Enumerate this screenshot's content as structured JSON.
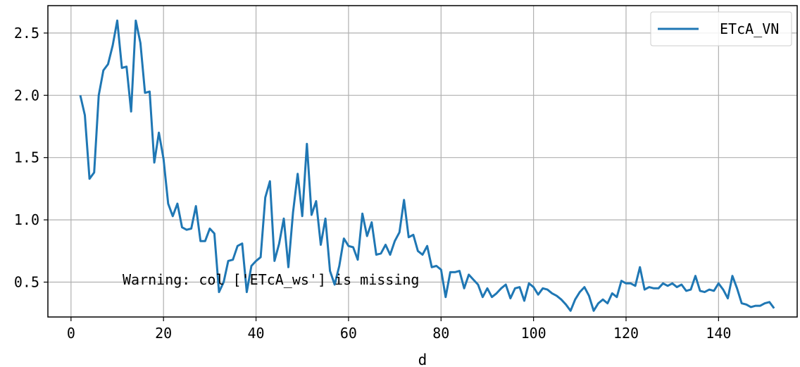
{
  "chart_data": {
    "type": "line",
    "xlabel": "d",
    "ylabel": "",
    "xlim": [
      -5,
      157
    ],
    "ylim": [
      0.22,
      2.72
    ],
    "xticks": [
      0,
      20,
      40,
      60,
      80,
      100,
      120,
      140
    ],
    "yticks": [
      0.5,
      1.0,
      1.5,
      2.0,
      2.5
    ],
    "xtick_labels": [
      "0",
      "20",
      "40",
      "60",
      "80",
      "100",
      "120",
      "140"
    ],
    "ytick_labels": [
      "0.5",
      "1.0",
      "1.5",
      "2.0",
      "2.5"
    ],
    "grid": true,
    "legend_position": "top-right",
    "annotation": "Warning: col ['ETcA_ws'] is missing",
    "series": [
      {
        "name": "ETcA_VN",
        "color": "#1f77b4",
        "x": [
          2,
          3,
          4,
          5,
          6,
          7,
          8,
          9,
          10,
          11,
          12,
          13,
          14,
          15,
          16,
          17,
          18,
          19,
          20,
          21,
          22,
          23,
          24,
          25,
          26,
          27,
          28,
          29,
          30,
          31,
          32,
          33,
          34,
          35,
          36,
          37,
          38,
          39,
          40,
          41,
          42,
          43,
          44,
          45,
          46,
          47,
          48,
          49,
          50,
          51,
          52,
          53,
          54,
          55,
          56,
          57,
          58,
          59,
          60,
          61,
          62,
          63,
          64,
          65,
          66,
          67,
          68,
          69,
          70,
          71,
          72,
          73,
          74,
          75,
          76,
          77,
          78,
          79,
          80,
          81,
          82,
          83,
          84,
          85,
          86,
          87,
          88,
          89,
          90,
          91,
          92,
          93,
          94,
          95,
          96,
          97,
          98,
          99,
          100,
          101,
          102,
          103,
          104,
          105,
          106,
          107,
          108,
          109,
          110,
          111,
          112,
          113,
          114,
          115,
          116,
          117,
          118,
          119,
          120,
          121,
          122,
          123,
          124,
          125,
          126,
          127,
          128,
          129,
          130,
          131,
          132,
          133,
          134,
          135,
          136,
          137,
          138,
          139,
          140,
          141,
          142,
          143,
          144,
          145,
          146,
          147,
          148,
          149,
          150,
          151,
          152
        ],
        "y": [
          2.0,
          1.84,
          1.33,
          1.38,
          2.0,
          2.2,
          2.25,
          2.4,
          2.6,
          2.22,
          2.23,
          1.87,
          2.6,
          2.42,
          2.02,
          2.03,
          1.46,
          1.7,
          1.49,
          1.13,
          1.03,
          1.13,
          0.94,
          0.92,
          0.93,
          1.11,
          0.83,
          0.83,
          0.93,
          0.89,
          0.42,
          0.5,
          0.67,
          0.68,
          0.79,
          0.81,
          0.42,
          0.63,
          0.67,
          0.7,
          1.18,
          1.31,
          0.67,
          0.81,
          1.01,
          0.62,
          1.06,
          1.37,
          1.03,
          1.61,
          1.04,
          1.15,
          0.8,
          1.01,
          0.59,
          0.48,
          0.63,
          0.85,
          0.79,
          0.78,
          0.68,
          1.05,
          0.87,
          0.98,
          0.72,
          0.73,
          0.8,
          0.72,
          0.83,
          0.9,
          1.16,
          0.86,
          0.88,
          0.75,
          0.72,
          0.79,
          0.62,
          0.63,
          0.6,
          0.38,
          0.58,
          0.58,
          0.59,
          0.45,
          0.56,
          0.52,
          0.48,
          0.38,
          0.45,
          0.38,
          0.41,
          0.45,
          0.48,
          0.37,
          0.45,
          0.46,
          0.35,
          0.49,
          0.46,
          0.4,
          0.45,
          0.44,
          0.41,
          0.39,
          0.36,
          0.32,
          0.27,
          0.36,
          0.42,
          0.46,
          0.39,
          0.27,
          0.33,
          0.36,
          0.33,
          0.41,
          0.38,
          0.51,
          0.49,
          0.49,
          0.47,
          0.62,
          0.44,
          0.46,
          0.45,
          0.45,
          0.49,
          0.47,
          0.49,
          0.46,
          0.48,
          0.43,
          0.44,
          0.55,
          0.43,
          0.42,
          0.44,
          0.43,
          0.49,
          0.44,
          0.37,
          0.55,
          0.45,
          0.33,
          0.32,
          0.3,
          0.31,
          0.31,
          0.33,
          0.34,
          0.29
        ]
      }
    ]
  }
}
